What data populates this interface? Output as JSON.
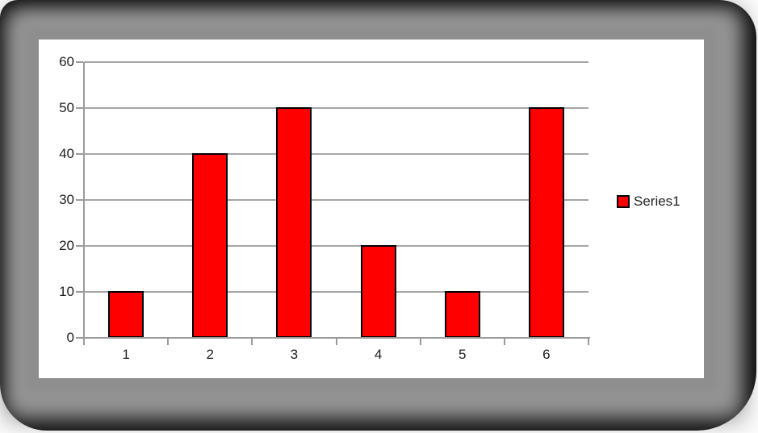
{
  "window": {
    "page_background": "#ffffff",
    "slide_background": "#000000",
    "chart_background": "#ffffff"
  },
  "chart_data": {
    "type": "bar",
    "title": "",
    "xlabel": "",
    "ylabel": "",
    "categories": [
      "1",
      "2",
      "3",
      "4",
      "5",
      "6"
    ],
    "series": [
      {
        "name": "Series1",
        "color": "#ff0000",
        "values": [
          10,
          40,
          50,
          20,
          10,
          50
        ]
      }
    ],
    "ylim": [
      0,
      60
    ],
    "yticks": [
      0,
      10,
      20,
      30,
      40,
      50,
      60
    ],
    "grid": true,
    "legend_position": "right",
    "bar_border_color": "#000000",
    "gridline_color": "#a6a6a6",
    "axis_color": "#9b9b9b",
    "tick_label_color": "#1f1f1f",
    "plot_background": "#ffffff"
  }
}
